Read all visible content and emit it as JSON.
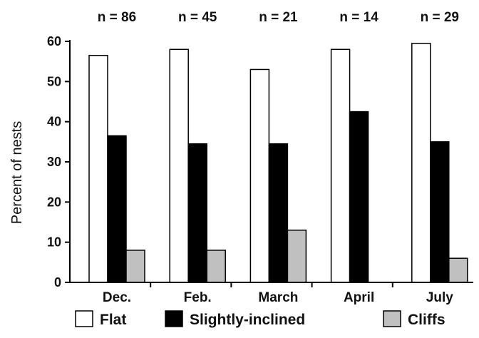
{
  "chart_data": {
    "type": "bar",
    "title": "",
    "xlabel": "",
    "ylabel": "Percent of nests",
    "ylim": [
      0,
      60
    ],
    "yticks": [
      "0",
      "10",
      "20",
      "30",
      "40",
      "50",
      "60"
    ],
    "categories": [
      "Dec.",
      "Feb.",
      "March",
      "April",
      "July"
    ],
    "sample_sizes": [
      "n = 86",
      "n = 45",
      "n = 21",
      "n = 14",
      "n = 29"
    ],
    "series": [
      {
        "name": "Flat",
        "color": "#ffffff",
        "values": [
          56.5,
          58,
          53,
          58,
          59.5
        ]
      },
      {
        "name": "Slightly-inclined",
        "color": "#000000",
        "values": [
          36.5,
          34.5,
          34.5,
          42.5,
          35
        ]
      },
      {
        "name": "Cliffs",
        "color": "#c0c0c0",
        "values": [
          8,
          8,
          13,
          0,
          6
        ]
      }
    ],
    "grid": false,
    "legend_position": "bottom"
  }
}
